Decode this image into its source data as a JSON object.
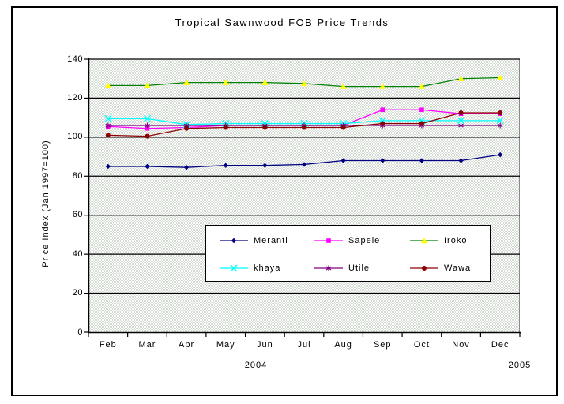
{
  "title": "Tropical Sawnwood FOB Price Trends",
  "y_axis": {
    "title": "Price Index (Jan 1997=100)",
    "ticks": [
      "0",
      "20",
      "40",
      "60",
      "80",
      "100",
      "120",
      "140"
    ]
  },
  "x_axis": {
    "months": [
      "Feb",
      "Mar",
      "Apr",
      "May",
      "Jun",
      "Jul",
      "Aug",
      "Sep",
      "Oct",
      "Nov",
      "Dec"
    ],
    "years": [
      "2004",
      "2005"
    ]
  },
  "chart_data": {
    "type": "line",
    "title": "Tropical Sawnwood FOB Price Trends",
    "xlabel": "",
    "ylabel": "Price Index (Jan 1997=100)",
    "categories": [
      "Feb",
      "Mar",
      "Apr",
      "May",
      "Jun",
      "Jul",
      "Aug",
      "Sep",
      "Oct",
      "Nov",
      "Dec"
    ],
    "year_groups": [
      "2004",
      "2005"
    ],
    "ylim": [
      0,
      140
    ],
    "ytick_step": 20,
    "grid": true,
    "gridline_color": "#000000",
    "plot_bg_color": "#d9ded6",
    "legend_position": "inside-lower-center",
    "series": [
      {
        "name": "Meranti",
        "color": "#000080",
        "marker": "diamond",
        "marker_color": "#000080",
        "values": [
          85,
          85,
          84.5,
          85.5,
          85.5,
          86,
          88,
          88,
          88,
          88,
          91
        ]
      },
      {
        "name": "Sapele",
        "color": "#ff00ff",
        "marker": "square",
        "marker_color": "#ff00ff",
        "values": [
          105.5,
          104.5,
          105,
          106,
          106,
          106,
          106,
          114,
          114,
          112,
          112
        ]
      },
      {
        "name": "Iroko",
        "color": "#008000",
        "marker": "triangle",
        "marker_color": "#ffff00",
        "values": [
          126.5,
          126.5,
          128,
          128,
          128,
          127.5,
          126,
          126,
          126,
          130,
          130.5
        ]
      },
      {
        "name": "khaya",
        "color": "#00ffff",
        "marker": "x",
        "marker_color": "#00ffff",
        "values": [
          109.5,
          109.5,
          106.5,
          107,
          107,
          107,
          107,
          108.5,
          108.5,
          108.5,
          108.5
        ]
      },
      {
        "name": "Utile",
        "color": "#800080",
        "marker": "star",
        "marker_color": "#800080",
        "values": [
          106,
          106,
          106,
          106,
          106,
          106,
          106,
          106,
          106,
          106,
          106
        ]
      },
      {
        "name": "Wawa",
        "color": "#8b0000",
        "marker": "circle",
        "marker_color": "#8b0000",
        "values": [
          101,
          100.5,
          104.5,
          105,
          105,
          105,
          105,
          107,
          107,
          112.5,
          112.5
        ]
      }
    ]
  }
}
